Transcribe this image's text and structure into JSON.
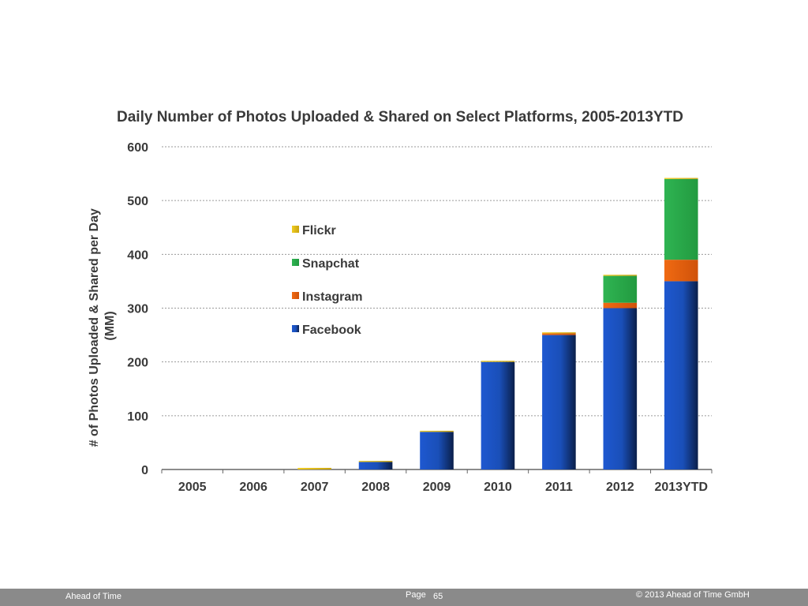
{
  "chart_data": {
    "type": "bar",
    "stacked": true,
    "title": "Daily Number of Photos Uploaded & Shared on Select Platforms, 2005-2013YTD",
    "ylabel_lines": [
      "# of Photos Uploaded & Shared per Day",
      "(MM)"
    ],
    "xlabel": "",
    "ylim": [
      0,
      600
    ],
    "yticks": [
      0,
      100,
      200,
      300,
      400,
      500,
      600
    ],
    "grid": true,
    "legend_position": "left-center",
    "categories": [
      "2005",
      "2006",
      "2007",
      "2008",
      "2009",
      "2010",
      "2011",
      "2012",
      "2013YTD"
    ],
    "series": [
      {
        "name": "Facebook",
        "color": "#1e56c8",
        "values": [
          0,
          0,
          0,
          14,
          70,
          200,
          250,
          300,
          350
        ]
      },
      {
        "name": "Instagram",
        "color": "#e8620f",
        "values": [
          0,
          0,
          0,
          0,
          0,
          0,
          3,
          10,
          40
        ]
      },
      {
        "name": "Snapchat",
        "color": "#2aa84a",
        "values": [
          0,
          0,
          0,
          0,
          0,
          0,
          0,
          50,
          150
        ]
      },
      {
        "name": "Flickr",
        "color": "#e6c21a",
        "values": [
          0,
          0,
          3,
          2,
          2,
          2,
          2,
          2,
          2
        ]
      }
    ],
    "legend_order": [
      "Flickr",
      "Snapchat",
      "Instagram",
      "Facebook"
    ]
  },
  "footer": {
    "left": "Ahead of Time",
    "page_label": "Page",
    "page_number": "65",
    "copyright": "© 2013 Ahead of Time GmbH"
  }
}
